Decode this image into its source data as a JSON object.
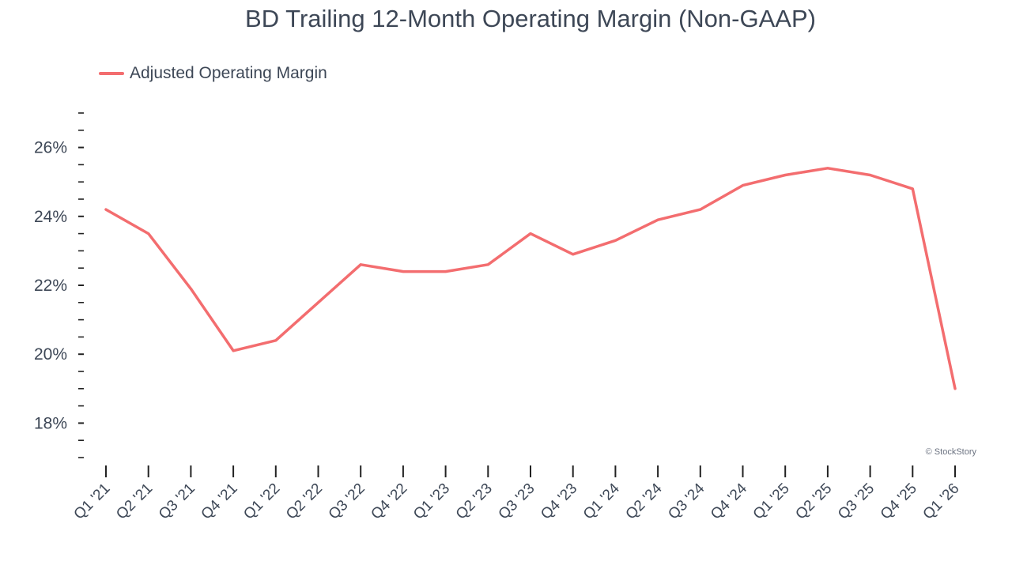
{
  "chart_data": {
    "type": "line",
    "title": "BD Trailing 12-Month Operating Margin (Non-GAAP)",
    "xlabel": "",
    "ylabel": "",
    "x": [
      "Q1 '21",
      "Q2 '21",
      "Q3 '21",
      "Q4 '21",
      "Q1 '22",
      "Q2 '22",
      "Q3 '22",
      "Q4 '22",
      "Q1 '23",
      "Q2 '23",
      "Q3 '23",
      "Q4 '23",
      "Q1 '24",
      "Q2 '24",
      "Q3 '24",
      "Q4 '24",
      "Q1 '25",
      "Q2 '25",
      "Q3 '25",
      "Q4 '25",
      "Q1 '26"
    ],
    "series": [
      {
        "name": "Adjusted Operating Margin",
        "color": "#f36d6f",
        "values": [
          24.2,
          23.5,
          21.9,
          20.1,
          20.4,
          21.5,
          22.6,
          22.4,
          22.4,
          22.6,
          23.5,
          22.9,
          23.3,
          23.9,
          24.2,
          24.9,
          25.2,
          25.4,
          25.2,
          24.8,
          19.0
        ]
      }
    ],
    "ylim": [
      17,
      27
    ],
    "yticks": [
      18,
      20,
      22,
      24,
      26
    ],
    "ytick_labels": [
      "18%",
      "20%",
      "22%",
      "24%",
      "26%"
    ],
    "yminor_step": 0.5,
    "grid": false,
    "legend": "top-left"
  },
  "credit": "© StockStory"
}
